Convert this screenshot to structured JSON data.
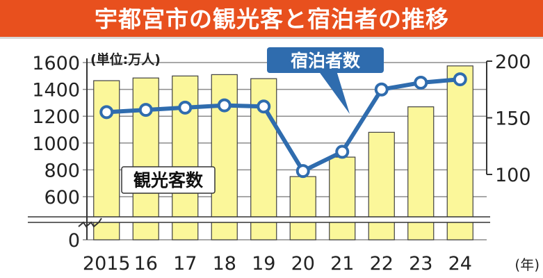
{
  "title": "宇都宮市の観光客と宿泊者の推移",
  "colors": {
    "title_bg": "#e8501e",
    "title_text": "#ffffff",
    "bar_fill": "#fbf79a",
    "bar_stroke": "#404040",
    "line": "#2f6cae",
    "marker_fill": "#ffffff",
    "grid": "#8c8c8c"
  },
  "chart_data": {
    "type": "bar+line",
    "unit_label": "(単位:万人)",
    "x_categories": [
      "2015",
      "16",
      "17",
      "18",
      "19",
      "20",
      "21",
      "22",
      "23",
      "24"
    ],
    "x_suffix": "(年)",
    "series": [
      {
        "name": "観光客数",
        "type": "bar",
        "axis": "left",
        "values": [
          1465,
          1485,
          1500,
          1510,
          1480,
          750,
          895,
          1080,
          1270,
          1575
        ]
      },
      {
        "name": "宿泊者数",
        "type": "line",
        "axis": "right",
        "values": [
          155,
          157,
          159,
          161,
          160,
          103,
          120,
          175,
          181,
          184
        ]
      }
    ],
    "left_axis": {
      "ticks": [
        600,
        800,
        1000,
        1200,
        1400,
        1600
      ],
      "break_value": 0,
      "range": [
        400,
        1700
      ],
      "axis_break": true
    },
    "right_axis": {
      "ticks": [
        100,
        150,
        200
      ],
      "range": [
        100,
        200
      ]
    },
    "grid": "horizontal",
    "legend": "labels-inside"
  }
}
